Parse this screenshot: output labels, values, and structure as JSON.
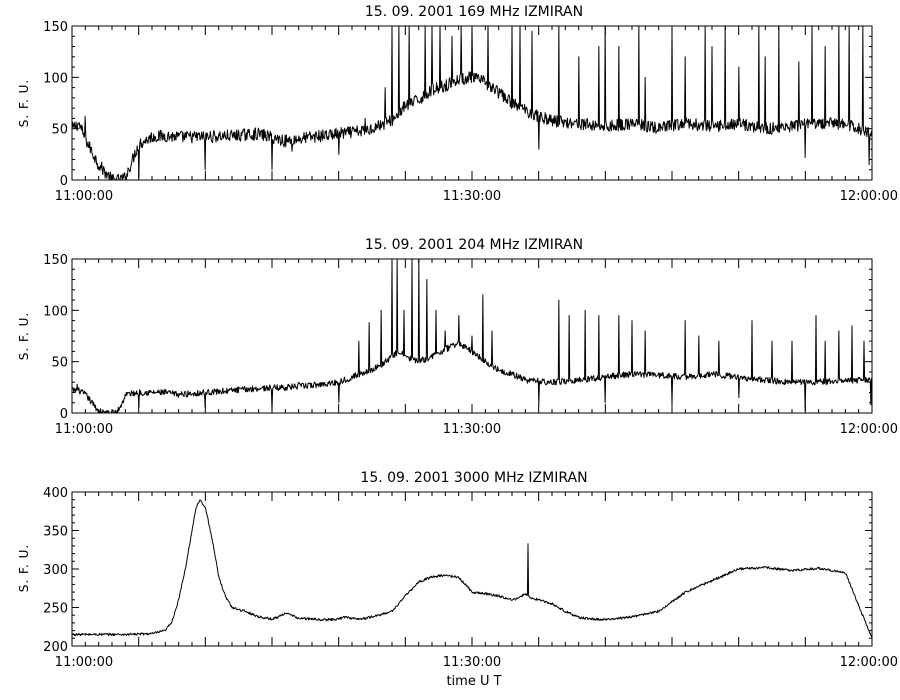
{
  "colors": {
    "line": "#000000",
    "frame": "#000000",
    "background": "#ffffff"
  },
  "xlabel": "time   U T",
  "chart_data": [
    {
      "type": "line",
      "title": "15.  09.  2001    169  MHz    IZMIRAN",
      "ylabel": "S.  F.  U.",
      "xlim": [
        "11:00:00",
        "12:00:00"
      ],
      "x_ticks": [
        "11:00:00",
        "11:30:00",
        "12:00:00"
      ],
      "ylim": [
        0,
        150
      ],
      "y_ticks": [
        0,
        50,
        100,
        150
      ],
      "series": [
        {
          "x_min": [
            0,
            0.5,
            1,
            2,
            3,
            3.5,
            4,
            5,
            6,
            7,
            8,
            10,
            12,
            14,
            16,
            18,
            20,
            22,
            24,
            25,
            26,
            27,
            28,
            29,
            30,
            31,
            32,
            33,
            34,
            35,
            36,
            38,
            40,
            42,
            44,
            46,
            48,
            50,
            52,
            54,
            56,
            58,
            60
          ],
          "y": [
            50,
            55,
            40,
            15,
            0,
            0,
            2,
            35,
            42,
            43,
            42,
            42,
            43,
            45,
            38,
            42,
            45,
            48,
            58,
            72,
            78,
            88,
            92,
            98,
            100,
            95,
            85,
            75,
            68,
            62,
            58,
            55,
            52,
            55,
            50,
            55,
            52,
            55,
            50,
            52,
            55,
            55,
            45
          ],
          "noise_amplitude": 6,
          "spikes": [
            {
              "t": 1,
              "v": 62
            },
            {
              "t": 5,
              "v": 2
            },
            {
              "t": 10,
              "v": 10
            },
            {
              "t": 15,
              "v": 10
            },
            {
              "t": 16.5,
              "v": 28
            },
            {
              "t": 20,
              "v": 25
            },
            {
              "t": 22,
              "v": 60
            },
            {
              "t": 23.5,
              "v": 90
            },
            {
              "t": 24,
              "v": 150
            },
            {
              "t": 24.5,
              "v": 150
            },
            {
              "t": 25.3,
              "v": 150
            },
            {
              "t": 26.5,
              "v": 150
            },
            {
              "t": 27,
              "v": 150
            },
            {
              "t": 27.6,
              "v": 150
            },
            {
              "t": 28.5,
              "v": 140
            },
            {
              "t": 29.2,
              "v": 150
            },
            {
              "t": 30,
              "v": 150
            },
            {
              "t": 31.2,
              "v": 150
            },
            {
              "t": 33,
              "v": 150
            },
            {
              "t": 33.6,
              "v": 150
            },
            {
              "t": 34.5,
              "v": 145
            },
            {
              "t": 35,
              "v": 30
            },
            {
              "t": 36.5,
              "v": 150
            },
            {
              "t": 38,
              "v": 120
            },
            {
              "t": 39.5,
              "v": 130
            },
            {
              "t": 40,
              "v": 150
            },
            {
              "t": 41,
              "v": 130
            },
            {
              "t": 42.5,
              "v": 150
            },
            {
              "t": 43,
              "v": 100
            },
            {
              "t": 45,
              "v": 150
            },
            {
              "t": 46,
              "v": 120
            },
            {
              "t": 47.5,
              "v": 150
            },
            {
              "t": 48,
              "v": 130
            },
            {
              "t": 49,
              "v": 150
            },
            {
              "t": 50,
              "v": 110
            },
            {
              "t": 51.5,
              "v": 150
            },
            {
              "t": 52,
              "v": 120
            },
            {
              "t": 53,
              "v": 150
            },
            {
              "t": 54.5,
              "v": 115
            },
            {
              "t": 55,
              "v": 22
            },
            {
              "t": 55.5,
              "v": 150
            },
            {
              "t": 56.5,
              "v": 130
            },
            {
              "t": 57.5,
              "v": 150
            },
            {
              "t": 58.3,
              "v": 150
            },
            {
              "t": 59.3,
              "v": 150
            },
            {
              "t": 59.8,
              "v": 15
            }
          ]
        }
      ]
    },
    {
      "type": "line",
      "title": "15.  09.  2001    204  MHz    IZMIRAN",
      "ylabel": "S.  F.  U.",
      "xlim": [
        "11:00:00",
        "12:00:00"
      ],
      "x_ticks": [
        "11:00:00",
        "11:30:00",
        "12:00:00"
      ],
      "ylim": [
        0,
        150
      ],
      "y_ticks": [
        0,
        50,
        100,
        150
      ],
      "series": [
        {
          "x_min": [
            0,
            0.5,
            1,
            2,
            2.5,
            3,
            3.3,
            3.8,
            4,
            5,
            6,
            7,
            8,
            10,
            12,
            14,
            16,
            18,
            20,
            21,
            22,
            23,
            24,
            24.5,
            25,
            26,
            27,
            28,
            29,
            30,
            31,
            32,
            33,
            34,
            36,
            38,
            40,
            42,
            44,
            46,
            48,
            50,
            52,
            54,
            56,
            58,
            60
          ],
          "y": [
            22,
            22,
            18,
            2,
            0,
            0,
            0,
            10,
            18,
            20,
            20,
            20,
            18,
            20,
            22,
            24,
            25,
            27,
            30,
            35,
            40,
            45,
            55,
            60,
            55,
            50,
            55,
            62,
            68,
            60,
            50,
            42,
            38,
            32,
            30,
            32,
            35,
            38,
            37,
            35,
            38,
            35,
            32,
            30,
            30,
            32,
            32
          ],
          "noise_amplitude": 3,
          "spikes": [
            {
              "t": 0.4,
              "v": 28
            },
            {
              "t": 5,
              "v": 5
            },
            {
              "t": 10,
              "v": 5
            },
            {
              "t": 15,
              "v": 2
            },
            {
              "t": 17,
              "v": 30
            },
            {
              "t": 20,
              "v": 10
            },
            {
              "t": 21.5,
              "v": 70
            },
            {
              "t": 22.3,
              "v": 88
            },
            {
              "t": 23.2,
              "v": 100
            },
            {
              "t": 24,
              "v": 150
            },
            {
              "t": 24.4,
              "v": 150
            },
            {
              "t": 24.9,
              "v": 100
            },
            {
              "t": 25.5,
              "v": 150
            },
            {
              "t": 26,
              "v": 150
            },
            {
              "t": 26.6,
              "v": 130
            },
            {
              "t": 27.3,
              "v": 100
            },
            {
              "t": 28,
              "v": 80
            },
            {
              "t": 29,
              "v": 95
            },
            {
              "t": 30,
              "v": 75
            },
            {
              "t": 30.8,
              "v": 115
            },
            {
              "t": 31.5,
              "v": 80
            },
            {
              "t": 35,
              "v": 8
            },
            {
              "t": 36.5,
              "v": 110
            },
            {
              "t": 37.3,
              "v": 95
            },
            {
              "t": 38.5,
              "v": 100
            },
            {
              "t": 39.5,
              "v": 95
            },
            {
              "t": 40,
              "v": 10
            },
            {
              "t": 41,
              "v": 95
            },
            {
              "t": 42,
              "v": 90
            },
            {
              "t": 43,
              "v": 80
            },
            {
              "t": 45,
              "v": 8
            },
            {
              "t": 46,
              "v": 90
            },
            {
              "t": 47,
              "v": 75
            },
            {
              "t": 48.5,
              "v": 70
            },
            {
              "t": 50,
              "v": 15
            },
            {
              "t": 51,
              "v": 90
            },
            {
              "t": 52.5,
              "v": 70
            },
            {
              "t": 54,
              "v": 70
            },
            {
              "t": 55,
              "v": 2
            },
            {
              "t": 55.8,
              "v": 95
            },
            {
              "t": 56.5,
              "v": 70
            },
            {
              "t": 57.5,
              "v": 80
            },
            {
              "t": 58.5,
              "v": 85
            },
            {
              "t": 59.4,
              "v": 70
            },
            {
              "t": 59.9,
              "v": 8
            }
          ]
        }
      ]
    },
    {
      "type": "line",
      "title": "15.  09.  2001    3000  MHz    IZMIRAN",
      "ylabel": "S.  F.  U.",
      "xlabel": "time   U T",
      "xlim": [
        "11:00:00",
        "12:00:00"
      ],
      "x_ticks": [
        "11:00:00",
        "11:30:00",
        "12:00:00"
      ],
      "ylim": [
        200,
        400
      ],
      "y_ticks": [
        200,
        250,
        300,
        350,
        400
      ],
      "series": [
        {
          "x_min": [
            0,
            2,
            4,
            6,
            7,
            7.5,
            8,
            8.5,
            9,
            9.3,
            9.6,
            10,
            10.5,
            11,
            11.5,
            12,
            13,
            14,
            15,
            15.5,
            16,
            17,
            18,
            19,
            20,
            20.5,
            21,
            21.5,
            22,
            22.5,
            23,
            24,
            25,
            26,
            27,
            28,
            29,
            29.5,
            30,
            31,
            32,
            33,
            33.5,
            34,
            34.5,
            35,
            36,
            37,
            38,
            39,
            40,
            42,
            44,
            46,
            48,
            50,
            52,
            54,
            56,
            58,
            60
          ],
          "y": [
            215,
            215,
            215,
            216,
            220,
            232,
            260,
            300,
            350,
            380,
            390,
            380,
            340,
            290,
            265,
            250,
            245,
            238,
            235,
            238,
            243,
            236,
            235,
            234,
            235,
            238,
            236,
            235,
            236,
            238,
            240,
            245,
            265,
            283,
            290,
            292,
            289,
            280,
            270,
            268,
            265,
            260,
            262,
            268,
            262,
            260,
            255,
            245,
            237,
            235,
            234,
            238,
            245,
            270,
            285,
            300,
            302,
            298,
            301,
            295,
            210
          ],
          "noise_amplitude": 1.5,
          "spikes": [
            {
              "t": 29.5,
              "v": 280
            },
            {
              "t": 34.2,
              "v": 333
            }
          ]
        }
      ]
    }
  ]
}
